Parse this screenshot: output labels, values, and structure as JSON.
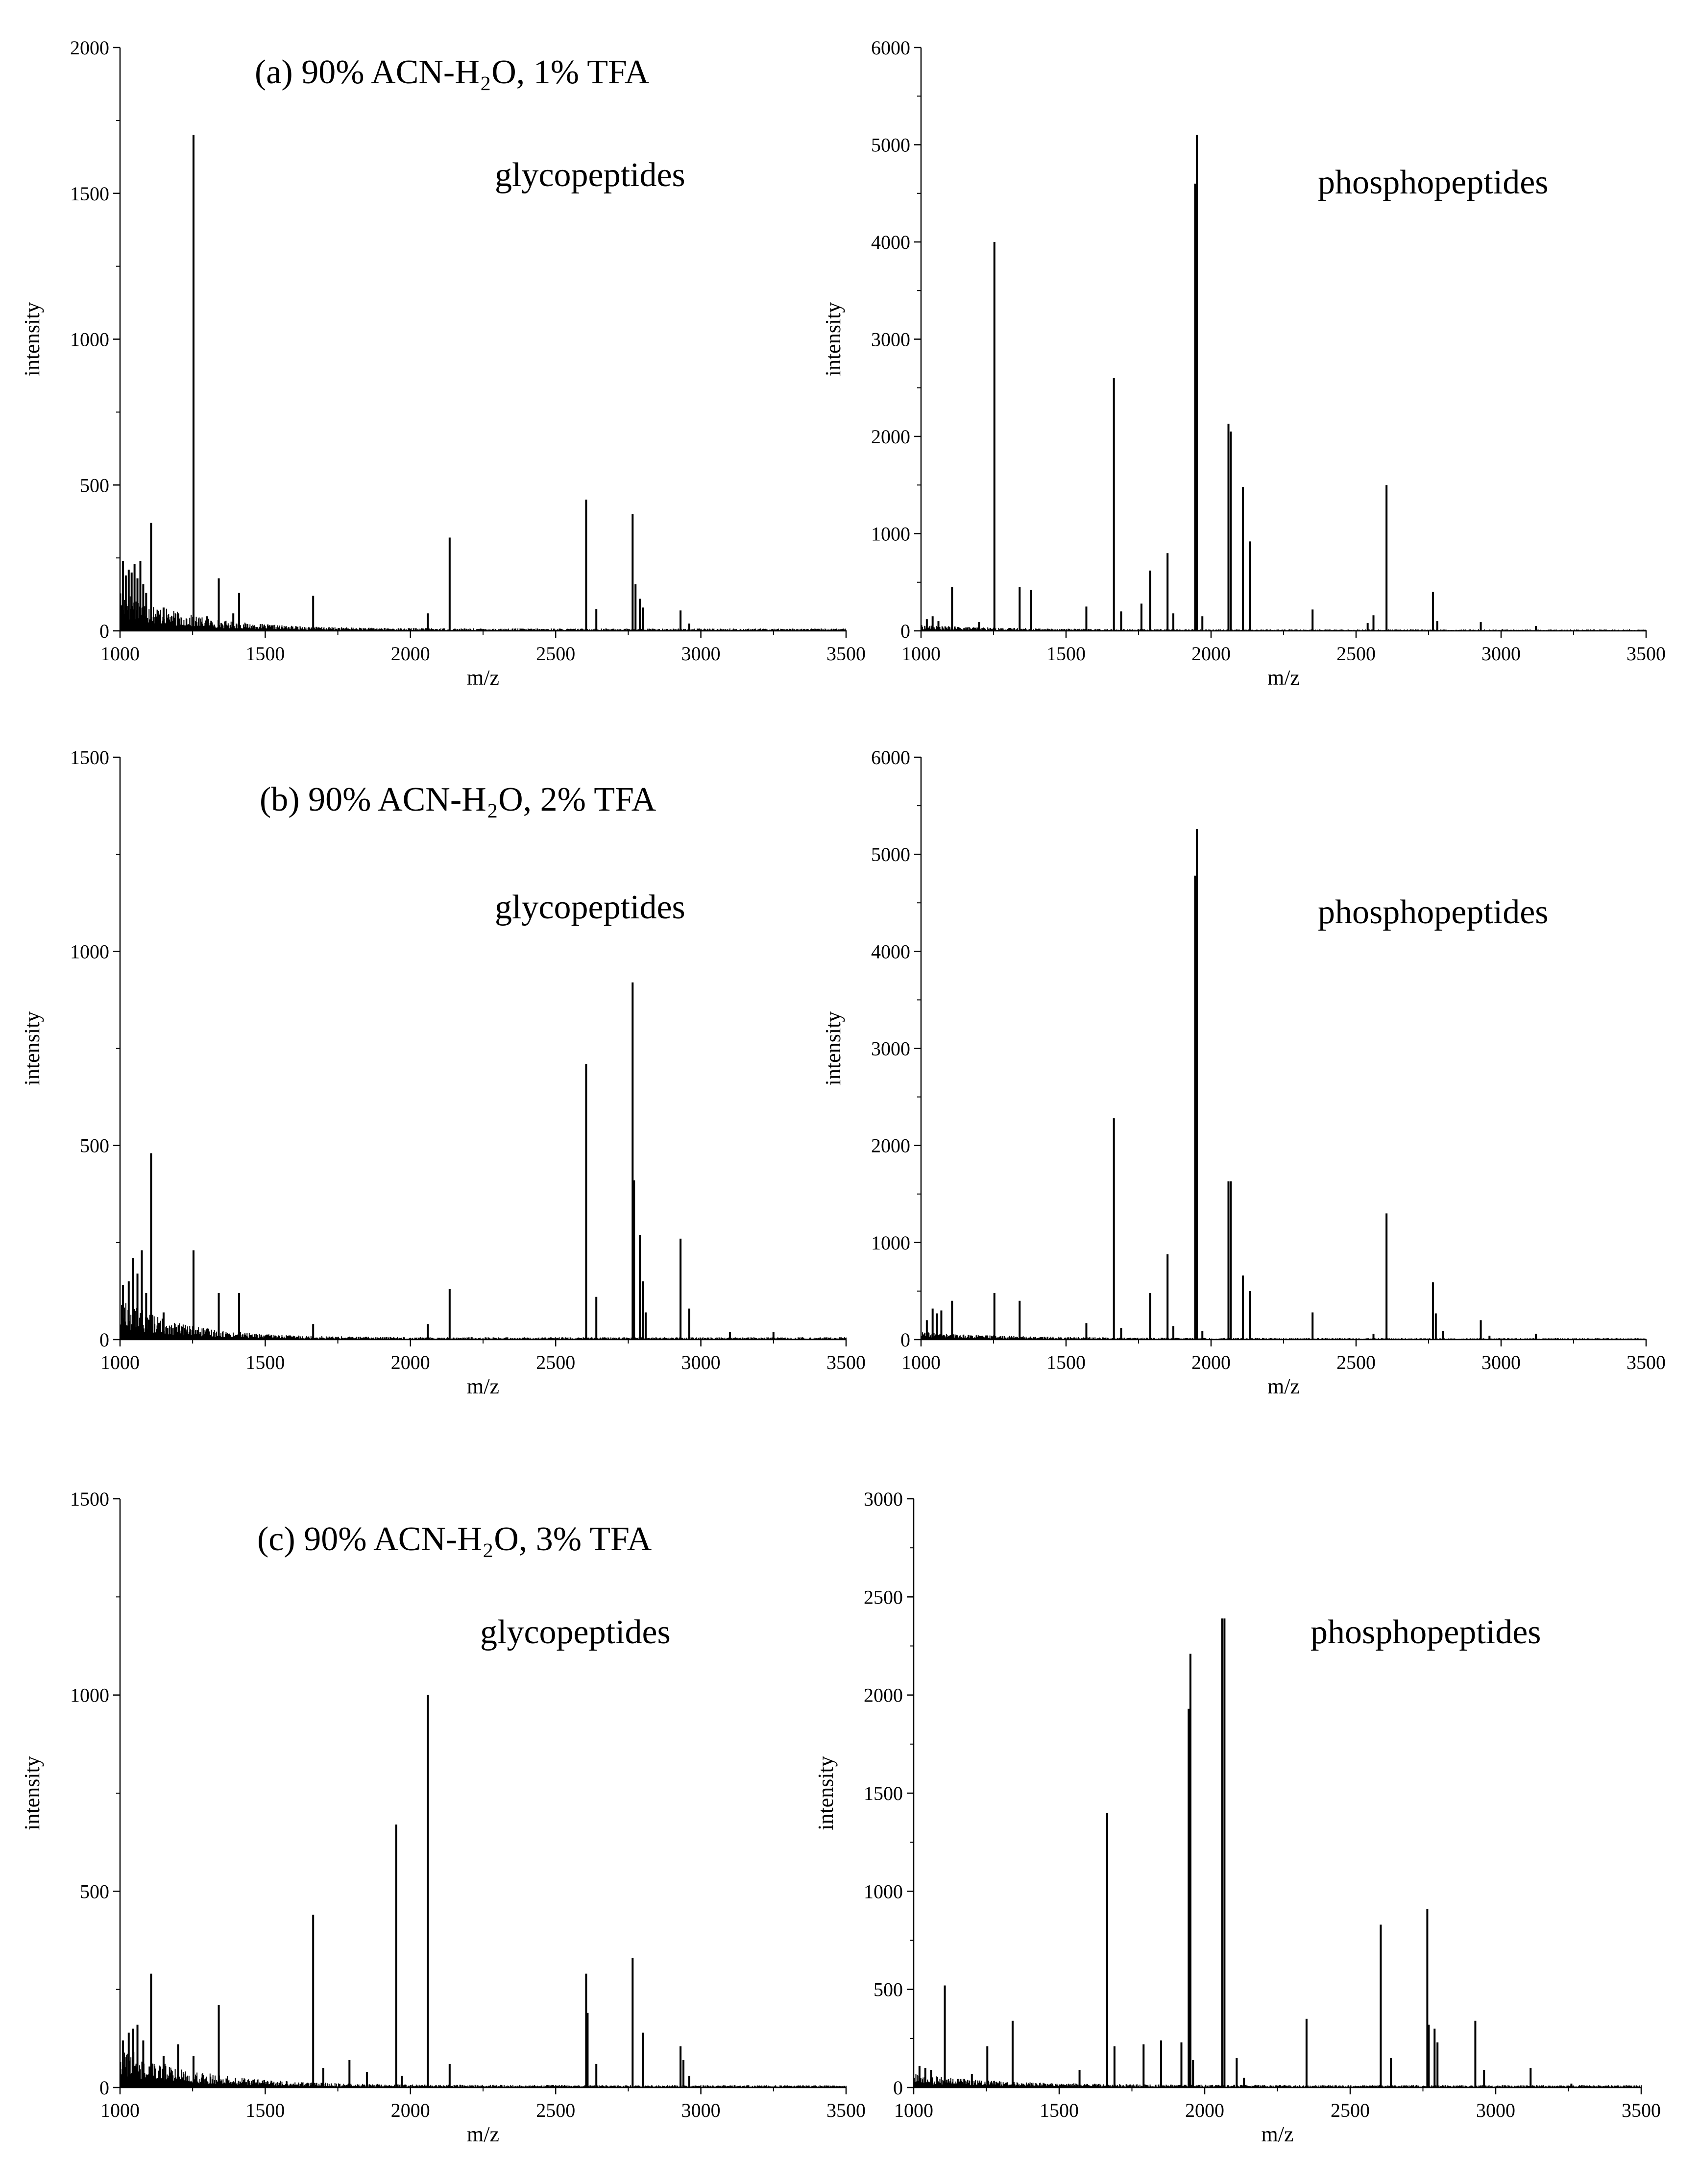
{
  "chart_data": [
    {
      "id": "a-glyco",
      "type": "bar",
      "condition_label": "(a)  90% ACN-H₂O, 1% TFA",
      "annotation": "glycopeptides",
      "xlabel": "m/z",
      "ylabel": "intensity",
      "xlim": [
        1000,
        3500
      ],
      "ylim": [
        0,
        2000
      ],
      "xticks": [
        1000,
        1500,
        2000,
        2500,
        3000,
        3500
      ],
      "yticks": [
        0,
        500,
        1000,
        1500,
        2000
      ],
      "peaks": [
        [
          1010,
          240
        ],
        [
          1020,
          190
        ],
        [
          1030,
          210
        ],
        [
          1040,
          200
        ],
        [
          1050,
          230
        ],
        [
          1060,
          180
        ],
        [
          1070,
          240
        ],
        [
          1080,
          160
        ],
        [
          1090,
          130
        ],
        [
          1107,
          370
        ],
        [
          1150,
          80
        ],
        [
          1200,
          60
        ],
        [
          1253,
          1700
        ],
        [
          1300,
          50
        ],
        [
          1340,
          180
        ],
        [
          1390,
          60
        ],
        [
          1410,
          130
        ],
        [
          1665,
          120
        ],
        [
          2060,
          60
        ],
        [
          2135,
          320
        ],
        [
          2605,
          450
        ],
        [
          2640,
          75
        ],
        [
          2765,
          400
        ],
        [
          2775,
          160
        ],
        [
          2790,
          110
        ],
        [
          2800,
          80
        ],
        [
          2930,
          70
        ],
        [
          2960,
          25
        ]
      ],
      "noise": {
        "from": 1000,
        "to": 3500,
        "start": 150,
        "floor": 8,
        "decay": 220
      }
    },
    {
      "id": "a-phospho",
      "type": "bar",
      "annotation": "phosphopeptides",
      "xlabel": "m/z",
      "ylabel": "intensity",
      "xlim": [
        1000,
        3500
      ],
      "ylim": [
        0,
        6000
      ],
      "xticks": [
        1000,
        1500,
        2000,
        2500,
        3000,
        3500
      ],
      "yticks": [
        0,
        1000,
        2000,
        3000,
        4000,
        5000,
        6000
      ],
      "peaks": [
        [
          1020,
          120
        ],
        [
          1040,
          150
        ],
        [
          1060,
          100
        ],
        [
          1107,
          450
        ],
        [
          1200,
          90
        ],
        [
          1253,
          4000
        ],
        [
          1340,
          450
        ],
        [
          1380,
          420
        ],
        [
          1570,
          250
        ],
        [
          1665,
          2600
        ],
        [
          1690,
          200
        ],
        [
          1760,
          280
        ],
        [
          1790,
          620
        ],
        [
          1850,
          800
        ],
        [
          1870,
          180
        ],
        [
          1945,
          4600
        ],
        [
          1951,
          5100
        ],
        [
          1970,
          150
        ],
        [
          2060,
          2130
        ],
        [
          2068,
          2050
        ],
        [
          2110,
          1480
        ],
        [
          2135,
          920
        ],
        [
          2350,
          220
        ],
        [
          2540,
          80
        ],
        [
          2560,
          160
        ],
        [
          2605,
          1500
        ],
        [
          2765,
          400
        ],
        [
          2780,
          100
        ],
        [
          2930,
          90
        ],
        [
          3120,
          50
        ]
      ],
      "noise": {
        "from": 1000,
        "to": 3500,
        "start": 60,
        "floor": 15,
        "decay": 300
      }
    },
    {
      "id": "b-glyco",
      "type": "bar",
      "condition_label": "(b)  90% ACN-H₂O, 2% TFA",
      "annotation": "glycopeptides",
      "xlabel": "m/z",
      "ylabel": "intensity",
      "xlim": [
        1000,
        3500
      ],
      "ylim": [
        0,
        1500
      ],
      "xticks": [
        1000,
        1500,
        2000,
        2500,
        3000,
        3500
      ],
      "yticks": [
        0,
        500,
        1000,
        1500
      ],
      "peaks": [
        [
          1010,
          140
        ],
        [
          1030,
          150
        ],
        [
          1045,
          210
        ],
        [
          1060,
          170
        ],
        [
          1075,
          230
        ],
        [
          1090,
          120
        ],
        [
          1107,
          480
        ],
        [
          1150,
          70
        ],
        [
          1253,
          230
        ],
        [
          1340,
          120
        ],
        [
          1410,
          120
        ],
        [
          1665,
          40
        ],
        [
          2060,
          40
        ],
        [
          2135,
          130
        ],
        [
          2605,
          710
        ],
        [
          2640,
          110
        ],
        [
          2765,
          920
        ],
        [
          2770,
          410
        ],
        [
          2790,
          270
        ],
        [
          2800,
          150
        ],
        [
          2810,
          70
        ],
        [
          2930,
          260
        ],
        [
          2960,
          80
        ],
        [
          3100,
          20
        ],
        [
          3250,
          20
        ]
      ],
      "noise": {
        "from": 1000,
        "to": 3500,
        "start": 110,
        "floor": 6,
        "decay": 200
      }
    },
    {
      "id": "b-phospho",
      "type": "bar",
      "annotation": "phosphopeptides",
      "xlabel": "m/z",
      "ylabel": "intensity",
      "xlim": [
        1000,
        3500
      ],
      "ylim": [
        0,
        6000
      ],
      "xticks": [
        1000,
        1500,
        2000,
        2500,
        3000,
        3500
      ],
      "yticks": [
        0,
        1000,
        2000,
        3000,
        4000,
        5000,
        6000
      ],
      "peaks": [
        [
          1020,
          200
        ],
        [
          1040,
          320
        ],
        [
          1055,
          270
        ],
        [
          1070,
          300
        ],
        [
          1107,
          400
        ],
        [
          1253,
          480
        ],
        [
          1340,
          400
        ],
        [
          1570,
          170
        ],
        [
          1665,
          2280
        ],
        [
          1690,
          120
        ],
        [
          1790,
          480
        ],
        [
          1850,
          880
        ],
        [
          1870,
          140
        ],
        [
          1945,
          4780
        ],
        [
          1951,
          5260
        ],
        [
          1970,
          90
        ],
        [
          2060,
          1630
        ],
        [
          2068,
          1630
        ],
        [
          2110,
          660
        ],
        [
          2135,
          500
        ],
        [
          2350,
          280
        ],
        [
          2560,
          60
        ],
        [
          2605,
          1300
        ],
        [
          2765,
          590
        ],
        [
          2775,
          270
        ],
        [
          2800,
          90
        ],
        [
          2930,
          200
        ],
        [
          2960,
          40
        ],
        [
          3120,
          60
        ]
      ],
      "noise": {
        "from": 1000,
        "to": 3500,
        "start": 80,
        "floor": 15,
        "decay": 300
      }
    },
    {
      "id": "c-glyco",
      "type": "bar",
      "condition_label": "(c)  90% ACN-H₂O, 3% TFA",
      "annotation": "glycopeptides",
      "xlabel": "m/z",
      "ylabel": "intensity",
      "xlim": [
        1000,
        3500
      ],
      "ylim": [
        0,
        1500
      ],
      "xticks": [
        1000,
        1500,
        2000,
        2500,
        3000,
        3500
      ],
      "yticks": [
        0,
        500,
        1000,
        1500
      ],
      "peaks": [
        [
          1010,
          120
        ],
        [
          1030,
          140
        ],
        [
          1045,
          150
        ],
        [
          1060,
          160
        ],
        [
          1080,
          120
        ],
        [
          1107,
          290
        ],
        [
          1150,
          80
        ],
        [
          1200,
          110
        ],
        [
          1253,
          80
        ],
        [
          1340,
          210
        ],
        [
          1665,
          440
        ],
        [
          1700,
          50
        ],
        [
          1790,
          70
        ],
        [
          1850,
          40
        ],
        [
          1951,
          670
        ],
        [
          1970,
          30
        ],
        [
          2060,
          1000
        ],
        [
          2135,
          60
        ],
        [
          2605,
          290
        ],
        [
          2610,
          190
        ],
        [
          2640,
          60
        ],
        [
          2765,
          330
        ],
        [
          2800,
          140
        ],
        [
          2930,
          105
        ],
        [
          2940,
          70
        ],
        [
          2960,
          30
        ]
      ],
      "noise": {
        "from": 1000,
        "to": 3500,
        "start": 110,
        "floor": 6,
        "decay": 250
      }
    },
    {
      "id": "c-phospho",
      "type": "bar",
      "annotation": "phosphopeptides",
      "xlabel": "m/z",
      "ylabel": "intensity",
      "xlim": [
        1000,
        3500
      ],
      "ylim": [
        0,
        3000
      ],
      "xticks": [
        1000,
        1500,
        2000,
        2500,
        3000,
        3500
      ],
      "yticks": [
        0,
        500,
        1000,
        1500,
        2000,
        2500,
        3000
      ],
      "peaks": [
        [
          1020,
          110
        ],
        [
          1040,
          100
        ],
        [
          1060,
          90
        ],
        [
          1107,
          520
        ],
        [
          1200,
          70
        ],
        [
          1253,
          210
        ],
        [
          1340,
          340
        ],
        [
          1570,
          90
        ],
        [
          1665,
          1400
        ],
        [
          1690,
          210
        ],
        [
          1790,
          220
        ],
        [
          1850,
          240
        ],
        [
          1920,
          230
        ],
        [
          1945,
          1930
        ],
        [
          1951,
          2210
        ],
        [
          1960,
          140
        ],
        [
          2060,
          2390
        ],
        [
          2068,
          2390
        ],
        [
          2110,
          150
        ],
        [
          2135,
          50
        ],
        [
          2350,
          350
        ],
        [
          2605,
          830
        ],
        [
          2640,
          150
        ],
        [
          2765,
          910
        ],
        [
          2770,
          320
        ],
        [
          2790,
          300
        ],
        [
          2800,
          230
        ],
        [
          2930,
          340
        ],
        [
          2960,
          90
        ],
        [
          3120,
          100
        ],
        [
          3260,
          20
        ]
      ],
      "noise": {
        "from": 1000,
        "to": 3500,
        "start": 70,
        "floor": 12,
        "decay": 300
      }
    }
  ]
}
